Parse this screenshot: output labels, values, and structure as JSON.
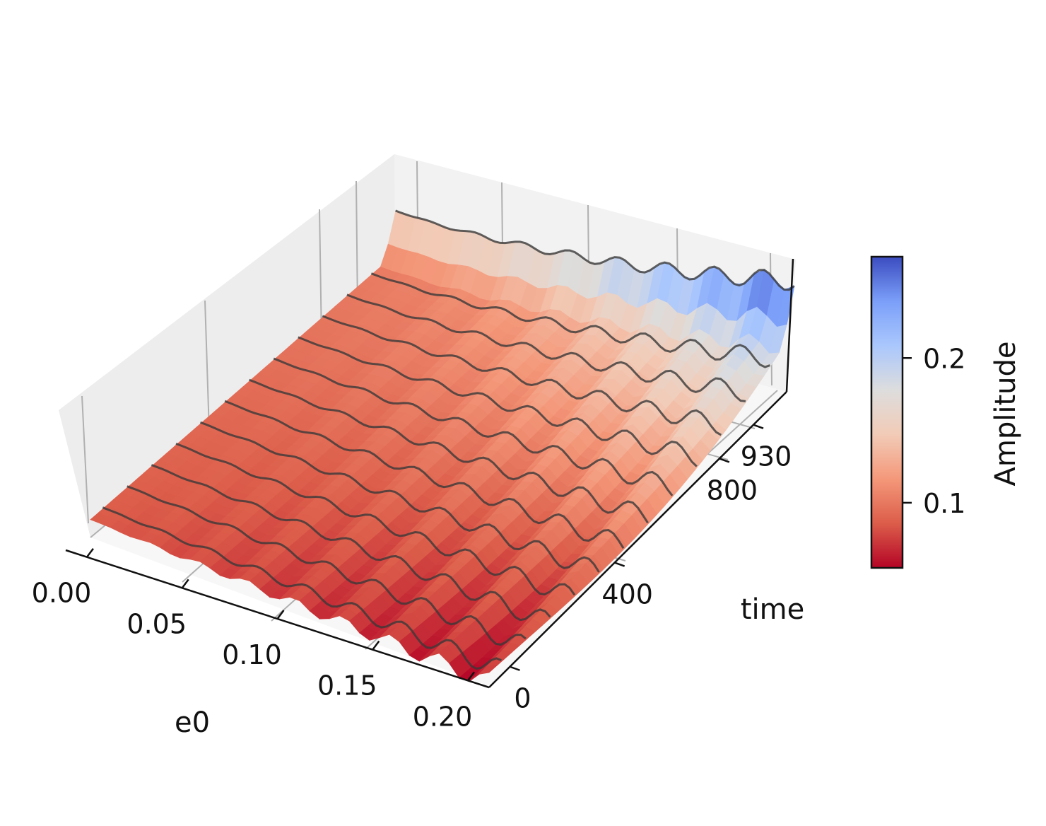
{
  "chart_data": {
    "type": "surface3d",
    "x_axis": {
      "label": "e0",
      "range": [
        0.0,
        0.2
      ],
      "ticks": [
        "0.00",
        "0.05",
        "0.10",
        "0.15",
        "0.20"
      ],
      "tick_values": [
        0.0,
        0.05,
        0.1,
        0.15,
        0.2
      ]
    },
    "y_axis": {
      "label": "time",
      "range": [
        0,
        1000
      ],
      "ticks": [
        "0",
        "400",
        "800",
        "930"
      ],
      "tick_values": [
        0,
        400,
        800,
        930
      ]
    },
    "z_range": [
      0.06,
      0.27
    ],
    "colorbar": {
      "label": "Amplitude",
      "range": [
        0.055,
        0.27
      ],
      "ticks": [
        "0.1",
        "0.2"
      ],
      "tick_values": [
        0.1,
        0.2
      ],
      "colormap": "coolwarm_r",
      "colors": [
        "#b40426",
        "#dc5d4a",
        "#f4987a",
        "#f2cbb7",
        "#dddddd",
        "#aac7fd",
        "#7b9ff9",
        "#3b4cc0"
      ]
    },
    "surface_shape": "amplitude rises with time; grows faster with larger e0, oscillating ripples for larger e0",
    "curves_at_time": [
      40,
      120,
      200,
      280,
      360,
      440,
      520,
      600,
      680,
      760,
      840,
      920,
      1000
    ]
  }
}
